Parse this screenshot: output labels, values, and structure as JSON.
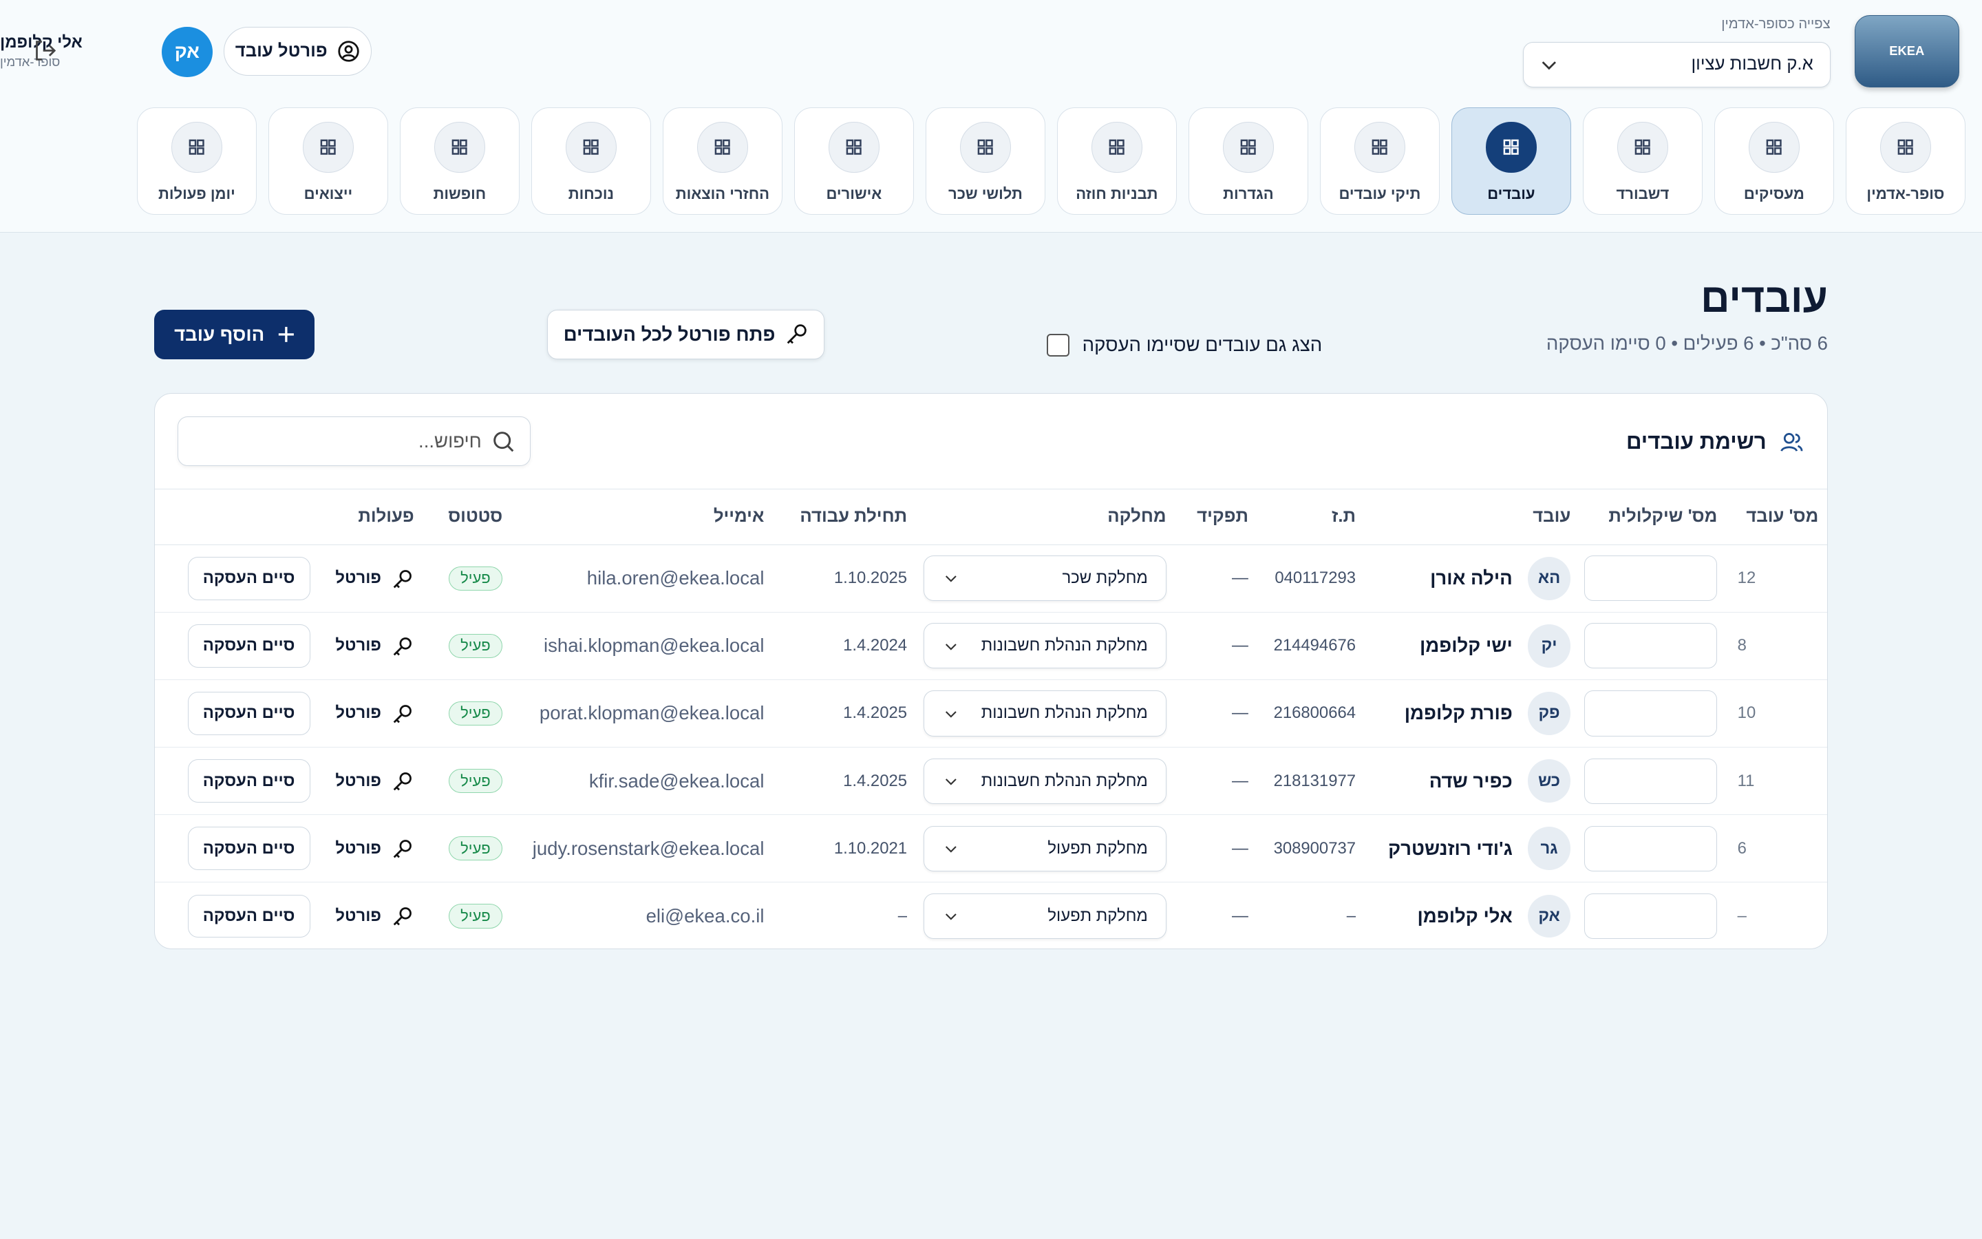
{
  "header": {
    "view_as": "צפייה כסופר-אדמין",
    "company_select": "א.ק חשבות עציון",
    "logo": "EKEA",
    "user": {
      "name": "אלי קלופמן",
      "role": "סופר-אדמין",
      "initials": "אק"
    },
    "portal_button": "פורטל עובד"
  },
  "nav": [
    {
      "label": "סופר-אדמין"
    },
    {
      "label": "מעסיקים"
    },
    {
      "label": "דשבורד"
    },
    {
      "label": "עובדים",
      "active": true
    },
    {
      "label": "תיקי עובדים"
    },
    {
      "label": "הגדרות"
    },
    {
      "label": "תבניות חוזה"
    },
    {
      "label": "תלושי שכר"
    },
    {
      "label": "אישורים"
    },
    {
      "label": "החזרי הוצאות"
    },
    {
      "label": "נוכחות"
    },
    {
      "label": "חופשות"
    },
    {
      "label": "ייצואים"
    },
    {
      "label": "יומן פעולות"
    }
  ],
  "page": {
    "title": "עובדים",
    "summary": "6 סה\"כ • 6 פעילים • 0 סיימו העסקה",
    "show_terminated": "הצג גם עובדים שסיימו העסקה",
    "open_portal_all": "פתח פורטל לכל העובדים",
    "add_employee": "הוסף עובד"
  },
  "table": {
    "title": "רשימת עובדים",
    "search_placeholder": "חיפוש...",
    "columns": [
      "מס' עובד",
      "מס' שיקלולית",
      "עובד",
      "ת.ז",
      "תפקיד",
      "מחלקה",
      "תחילת עבודה",
      "אימייל",
      "סטטוס",
      "פעולות"
    ],
    "actions": {
      "portal": "פורטל",
      "terminate": "סיים העסקה"
    },
    "rows": [
      {
        "id": "12",
        "initials": "הא",
        "name": "הילה אורן",
        "tz": "040117293",
        "role": "—",
        "department": "מחלקת שכר",
        "start": "1.10.2025",
        "email": "hila.oren@ekea.local",
        "status": "פעיל"
      },
      {
        "id": "8",
        "initials": "יק",
        "name": "ישי קלופמן",
        "tz": "214494676",
        "role": "—",
        "department": "מחלקת הנהלת חשבונות",
        "start": "1.4.2024",
        "email": "ishai.klopman@ekea.local",
        "status": "פעיל"
      },
      {
        "id": "10",
        "initials": "פק",
        "name": "פורת קלופמן",
        "tz": "216800664",
        "role": "—",
        "department": "מחלקת הנהלת חשבונות",
        "start": "1.4.2025",
        "email": "porat.klopman@ekea.local",
        "status": "פעיל"
      },
      {
        "id": "11",
        "initials": "כש",
        "name": "כפיר שדה",
        "tz": "218131977",
        "role": "—",
        "department": "מחלקת הנהלת חשבונות",
        "start": "1.4.2025",
        "email": "kfir.sade@ekea.local",
        "status": "פעיל"
      },
      {
        "id": "6",
        "initials": "גר",
        "name": "ג'ודי רוזנשטרק",
        "tz": "308900737",
        "role": "—",
        "department": "מחלקת תפעול",
        "start": "1.10.2021",
        "email": "judy.rosenstark@ekea.local",
        "status": "פעיל"
      },
      {
        "id": "–",
        "initials": "אק",
        "name": "אלי קלופמן",
        "tz": "–",
        "role": "—",
        "department": "מחלקת תפעול",
        "start": "–",
        "email": "eli@ekea.co.il",
        "status": "פעיל"
      }
    ]
  }
}
